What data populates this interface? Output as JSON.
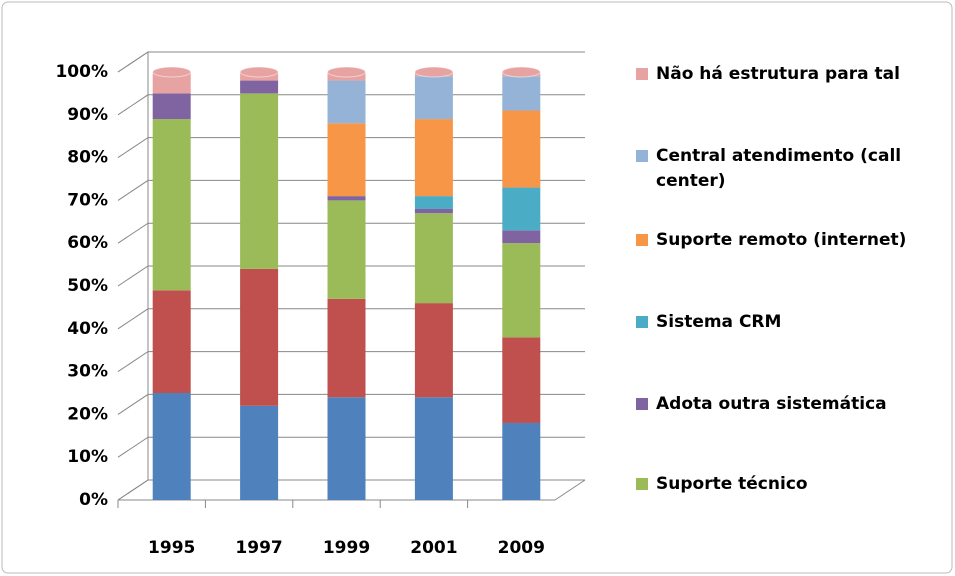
{
  "chart_data": {
    "type": "bar",
    "stacked": true,
    "categories": [
      "1995",
      "1997",
      "1999",
      "2001",
      "2009"
    ],
    "series": [
      {
        "color": "#4f81bd",
        "values": [
          25,
          22,
          24,
          24,
          18
        ]
      },
      {
        "color": "#c0504d",
        "values": [
          24,
          32,
          23,
          22,
          20
        ]
      },
      {
        "name": "Suporte técnico",
        "color": "#9bbb59",
        "values": [
          40,
          41,
          23,
          21,
          22
        ]
      },
      {
        "name": "Adota outra sistemática",
        "color": "#8064a2",
        "values": [
          6,
          3,
          1,
          1,
          3
        ]
      },
      {
        "name": "Sistema CRM",
        "color": "#4bacc6",
        "values": [
          0,
          0,
          0,
          3,
          10
        ]
      },
      {
        "name": "Suporte remoto (internet)",
        "color": "#f79646",
        "values": [
          0,
          0,
          17,
          18,
          18
        ]
      },
      {
        "name": "Central atendimento  (call center)",
        "color": "#95b3d7",
        "values": [
          0,
          0,
          10,
          10,
          8
        ]
      },
      {
        "name": "Não há estrutura para tal",
        "color": "#e6a3a2",
        "values": [
          5,
          2,
          2,
          1,
          1
        ]
      }
    ],
    "ylim": [
      0,
      100
    ],
    "yticks": [
      {
        "value": 0,
        "label": "0%"
      },
      {
        "value": 10,
        "label": "10%"
      },
      {
        "value": 20,
        "label": "20%"
      },
      {
        "value": 30,
        "label": "30%"
      },
      {
        "value": 40,
        "label": "40%"
      },
      {
        "value": 50,
        "label": "50%"
      },
      {
        "value": 60,
        "label": "60%"
      },
      {
        "value": 70,
        "label": "70%"
      },
      {
        "value": 80,
        "label": "80%"
      },
      {
        "value": 90,
        "label": "90%"
      },
      {
        "value": 100,
        "label": "100%"
      }
    ],
    "grid": true,
    "legend": "right"
  }
}
